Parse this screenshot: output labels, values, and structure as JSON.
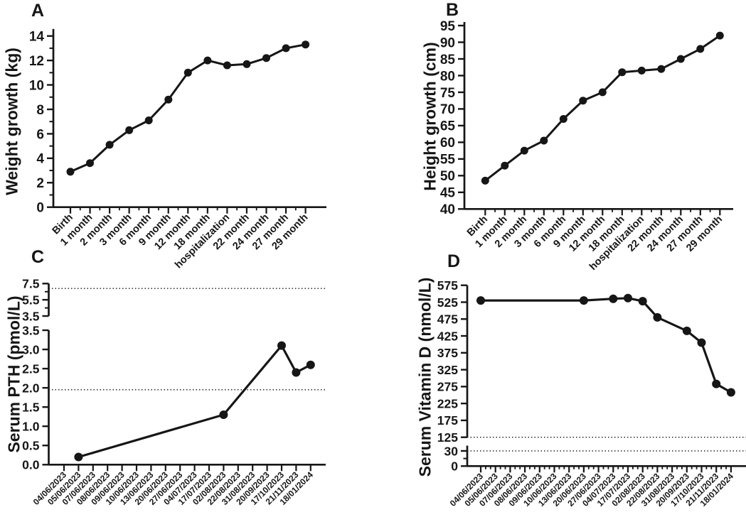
{
  "figure": {
    "background": "#ffffff",
    "ink_color": "#161616",
    "marker_shape": "filled-circle",
    "reference_line_style": "dotted"
  },
  "chart_data": [
    {
      "type": "line",
      "panel_label": "A",
      "ylabel": "Weight growth (kg)",
      "xlabel": "",
      "categories": [
        "Birth",
        "1 month",
        "2 month",
        "3 month",
        "6 month",
        "9 month",
        "12 month",
        "18 month",
        "hospitalization",
        "22 month",
        "24 month",
        "27 month",
        "29 month"
      ],
      "values": [
        2.9,
        3.6,
        5.1,
        6.3,
        7.1,
        8.8,
        11.0,
        12.0,
        11.6,
        11.7,
        12.2,
        13.0,
        13.3
      ],
      "ylim": [
        0,
        14
      ],
      "grid": false,
      "legend": "none",
      "segments": [
        {
          "ylim": [
            0,
            14
          ],
          "tick_values": [
            0,
            2,
            4,
            6,
            8,
            10,
            12,
            14
          ],
          "tick_labels": [
            "0",
            "2",
            "4",
            "6",
            "8",
            "10",
            "12",
            "14"
          ],
          "minor_tick_values": [
            1,
            3,
            5,
            7,
            9,
            11,
            13
          ]
        }
      ],
      "reference_lines": []
    },
    {
      "type": "line",
      "panel_label": "B",
      "ylabel": "Height growth (cm)",
      "xlabel": "",
      "categories": [
        "Birth",
        "1 month",
        "2 month",
        "3 month",
        "6 month",
        "9 month",
        "12 month",
        "18 month",
        "hospitalization",
        "22 month",
        "24 month",
        "27 month",
        "29 month"
      ],
      "values": [
        48.5,
        53,
        57.5,
        60.5,
        67,
        72.5,
        75,
        81,
        81.5,
        82,
        85,
        88,
        92
      ],
      "ylim": [
        40,
        95
      ],
      "grid": false,
      "legend": "none",
      "segments": [
        {
          "ylim": [
            40,
            95
          ],
          "tick_values": [
            40,
            45,
            50,
            55,
            60,
            65,
            70,
            75,
            80,
            85,
            90,
            95
          ],
          "tick_labels": [
            "40",
            "45",
            "50",
            "55",
            "60",
            "65",
            "70",
            "75",
            "80",
            "85",
            "90",
            "95"
          ],
          "minor_tick_values": []
        }
      ],
      "reference_lines": []
    },
    {
      "type": "line",
      "panel_label": "C",
      "ylabel": "Serum PTH (pmol/L)",
      "xlabel": "",
      "axis_break": true,
      "categories": [
        "04/06/2023",
        "05/06/2023",
        "07/06/2023",
        "08/06/2023",
        "09/06/2023",
        "10/06/2023",
        "13/06/2023",
        "20/06/2023",
        "27/06/2023",
        "04/07/2023",
        "17/07/2023",
        "02/08/2023",
        "22/08/2023",
        "31/08/2023",
        "20/09/2023",
        "17/10/2023",
        "21/11/2023",
        "18/01/2024"
      ],
      "values": [
        null,
        0.2,
        null,
        null,
        null,
        null,
        null,
        null,
        null,
        null,
        null,
        1.3,
        null,
        null,
        null,
        3.1,
        2.4,
        2.6
      ],
      "grid": false,
      "legend": "none",
      "segments": [
        {
          "ylim": [
            3.5,
            7.5
          ],
          "tick_values": [
            3.5,
            5.5,
            7.5
          ],
          "tick_labels": [
            "3.5",
            "5.5",
            "7.5"
          ],
          "minor_tick_values": [
            4.5,
            6.5
          ]
        },
        {
          "ylim": [
            0,
            3.5
          ],
          "tick_values": [
            0,
            0.5,
            1.0,
            1.5,
            2.0,
            2.5,
            3.0,
            3.5
          ],
          "tick_labels": [
            "0.0",
            "0.5",
            "1.0",
            "1.5",
            "2.0",
            "2.5",
            "3.0",
            "3.5"
          ],
          "minor_tick_values": []
        }
      ],
      "reference_lines": [
        6.9,
        1.95
      ]
    },
    {
      "type": "line",
      "panel_label": "D",
      "ylabel": "Serum Vitamin D (nmol/L)",
      "xlabel": "",
      "axis_break": true,
      "categories": [
        "04/06/2023",
        "05/06/2023",
        "07/06/2023",
        "08/06/2023",
        "09/06/2023",
        "10/06/2023",
        "13/06/2023",
        "20/06/2023",
        "27/06/2023",
        "04/07/2023",
        "17/07/2023",
        "02/08/2023",
        "22/08/2023",
        "31/08/2023",
        "20/09/2023",
        "17/10/2023",
        "21/11/2023",
        "18/01/2024"
      ],
      "values": [
        530,
        null,
        null,
        null,
        null,
        null,
        null,
        530,
        null,
        535,
        537,
        528,
        480,
        null,
        440,
        405,
        283,
        258
      ],
      "grid": false,
      "legend": "none",
      "segments": [
        {
          "ylim": [
            125,
            575
          ],
          "tick_values": [
            125,
            175,
            225,
            275,
            325,
            375,
            425,
            475,
            525,
            575
          ],
          "tick_labels": [
            "125",
            "175",
            "225",
            "275",
            "325",
            "375",
            "425",
            "475",
            "525",
            "575"
          ],
          "minor_tick_values": []
        },
        {
          "ylim": [
            0,
            40.5
          ],
          "tick_values": [
            0,
            30
          ],
          "tick_labels": [
            "0",
            "30"
          ],
          "minor_tick_values": [
            15
          ]
        }
      ],
      "reference_lines": [
        125,
        30
      ]
    }
  ]
}
